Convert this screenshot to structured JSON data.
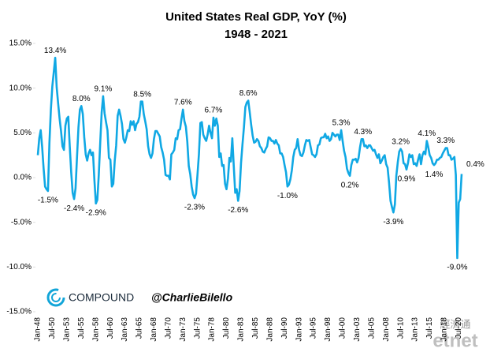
{
  "chart_data": {
    "type": "line",
    "title": "United States Real GDP, YoY (%)",
    "subtitle": "1948 - 2021",
    "branding": {
      "company": "COMPOUND",
      "handle": "@CharlieBilello",
      "watermark": "etnet",
      "watermark_cn": "經濟通"
    },
    "color": "#10a8e4",
    "ylim": [
      -15,
      15
    ],
    "yticks": [
      {
        "value": -15,
        "label": "-15.0%"
      },
      {
        "value": -10,
        "label": "-10.0%"
      },
      {
        "value": -5,
        "label": "-5.0%"
      },
      {
        "value": 0,
        "label": "0.0%"
      },
      {
        "value": 5,
        "label": "5.0%"
      },
      {
        "value": 10,
        "label": "10.0%"
      },
      {
        "value": 15,
        "label": "15.0%"
      }
    ],
    "categories": [
      "Jan-48",
      null,
      null,
      null,
      null,
      null,
      null,
      null,
      null,
      null,
      "Jul-50",
      null,
      null,
      null,
      null,
      null,
      null,
      null,
      null,
      null,
      "Jan-53",
      null,
      null,
      null,
      null,
      null,
      null,
      null,
      null,
      null,
      "Jul-55",
      null,
      null,
      null,
      null,
      null,
      null,
      null,
      null,
      null,
      "Jan-58",
      null,
      null,
      null,
      null,
      null,
      null,
      null,
      null,
      null,
      "Jul-60",
      null,
      null,
      null,
      null,
      null,
      null,
      null,
      null,
      null,
      "Jan-63",
      null,
      null,
      null,
      null,
      null,
      null,
      null,
      null,
      null,
      "Jul-65",
      null,
      null,
      null,
      null,
      null,
      null,
      null,
      null,
      null,
      "Jan-68",
      null,
      null,
      null,
      null,
      null,
      null,
      null,
      null,
      null,
      "Jul-70",
      null,
      null,
      null,
      null,
      null,
      null,
      null,
      null,
      null,
      "Jan-73",
      null,
      null,
      null,
      null,
      null,
      null,
      null,
      null,
      null,
      "Jul-75",
      null,
      null,
      null,
      null,
      null,
      null,
      null,
      null,
      null,
      "Jan-78",
      null,
      null,
      null,
      null,
      null,
      null,
      null,
      null,
      null,
      "Jul-80",
      null,
      null,
      null,
      null,
      null,
      null,
      null,
      null,
      null,
      "Jan-83",
      null,
      null,
      null,
      null,
      null,
      null,
      null,
      null,
      null,
      "Jul-85",
      null,
      null,
      null,
      null,
      null,
      null,
      null,
      null,
      null,
      "Jan-88",
      null,
      null,
      null,
      null,
      null,
      null,
      null,
      null,
      null,
      "Jul-90",
      null,
      null,
      null,
      null,
      null,
      null,
      null,
      null,
      null,
      "Jan-93",
      null,
      null,
      null,
      null,
      null,
      null,
      null,
      null,
      null,
      "Jul-95",
      null,
      null,
      null,
      null,
      null,
      null,
      null,
      null,
      null,
      "Jan-98",
      null,
      null,
      null,
      null,
      null,
      null,
      null,
      null,
      null,
      "Jul-00",
      null,
      null,
      null,
      null,
      null,
      null,
      null,
      null,
      null,
      "Jan-03",
      null,
      null,
      null,
      null,
      null,
      null,
      null,
      null,
      null,
      "Jul-05",
      null,
      null,
      null,
      null,
      null,
      null,
      null,
      null,
      null,
      "Jan-08",
      null,
      null,
      null,
      null,
      null,
      null,
      null,
      null,
      null,
      "Jul-10",
      null,
      null,
      null,
      null,
      null,
      null,
      null,
      null,
      null,
      "Jan-13",
      null,
      null,
      null,
      null,
      null,
      null,
      null,
      null,
      null,
      "Jul-15",
      null,
      null,
      null,
      null,
      null,
      null,
      null,
      null,
      null,
      "Jan-18",
      null,
      null,
      null,
      null,
      null,
      null,
      null,
      null,
      null,
      "Jul-20",
      null,
      null
    ],
    "values": [
      2.5,
      4.4,
      5.3,
      3.4,
      1.0,
      -1.0,
      -1.3,
      -1.5,
      3.9,
      7.6,
      10.2,
      11.8,
      13.4,
      10.1,
      8.3,
      6.6,
      5.2,
      3.5,
      3.1,
      5.8,
      6.6,
      6.8,
      3.5,
      0.6,
      -1.7,
      -2.4,
      -1.2,
      2.3,
      5.6,
      7.6,
      8.0,
      7.1,
      4.5,
      2.6,
      1.9,
      2.7,
      3.1,
      2.5,
      2.8,
      -0.3,
      -2.9,
      -2.5,
      0.3,
      3.9,
      7.3,
      9.1,
      7.2,
      6.2,
      5.3,
      2.2,
      2.0,
      -1.0,
      -0.7,
      1.9,
      3.6,
      6.9,
      7.6,
      6.9,
      6.0,
      4.3,
      3.9,
      4.5,
      5.3,
      5.2,
      6.3,
      5.9,
      6.3,
      5.3,
      6.0,
      6.2,
      6.8,
      8.5,
      8.5,
      7.1,
      6.3,
      5.4,
      3.5,
      2.6,
      2.2,
      2.7,
      4.3,
      5.2,
      5.2,
      4.9,
      4.6,
      3.4,
      2.8,
      2.0,
      0.3,
      0.2,
      0.2,
      -0.2,
      2.6,
      2.8,
      3.1,
      4.4,
      4.3,
      5.3,
      5.4,
      6.6,
      7.6,
      6.3,
      5.7,
      4.0,
      1.3,
      0.4,
      -1.0,
      -1.9,
      -2.3,
      -1.8,
      0.3,
      2.6,
      6.1,
      6.2,
      4.8,
      4.4,
      4.1,
      4.8,
      5.8,
      5.0,
      4.4,
      6.7,
      5.8,
      6.6,
      5.8,
      2.3,
      2.7,
      1.3,
      1.4,
      -0.7,
      -1.3,
      -0.1,
      2.2,
      1.8,
      4.4,
      1.3,
      -1.7,
      -1.3,
      -2.6,
      -1.5,
      1.6,
      3.7,
      5.6,
      7.9,
      8.4,
      8.6,
      7.3,
      5.9,
      4.7,
      3.9,
      4.0,
      4.3,
      4.1,
      3.5,
      3.3,
      2.9,
      2.8,
      3.2,
      3.5,
      4.5,
      4.4,
      4.1,
      4.1,
      3.8,
      4.2,
      3.8,
      3.6,
      2.7,
      2.7,
      2.3,
      1.4,
      0.6,
      -1.0,
      -0.8,
      -0.2,
      0.8,
      2.3,
      3.1,
      3.3,
      4.3,
      3.1,
      2.5,
      2.4,
      2.8,
      3.6,
      4.2,
      4.1,
      4.2,
      3.4,
      2.6,
      2.5,
      2.3,
      2.6,
      3.6,
      3.7,
      4.4,
      4.5,
      4.5,
      4.9,
      4.4,
      4.6,
      4.1,
      4.3,
      5.0,
      4.8,
      4.6,
      4.8,
      4.8,
      4.2,
      5.3,
      4.1,
      3.0,
      2.3,
      1.0,
      0.5,
      0.2,
      1.4,
      2.0,
      2.0,
      2.1,
      1.7,
      2.2,
      3.4,
      4.3,
      4.3,
      3.5,
      3.6,
      3.3,
      3.6,
      3.6,
      3.3,
      3.0,
      3.1,
      2.6,
      2.2,
      2.6,
      1.6,
      1.9,
      2.3,
      2.5,
      1.5,
      1.1,
      -0.6,
      -2.6,
      -3.3,
      -3.9,
      -3.0,
      0.2,
      1.7,
      2.9,
      3.2,
      2.9,
      1.6,
      1.5,
      0.9,
      1.6,
      2.6,
      2.3,
      2.5,
      1.5,
      1.6,
      1.3,
      2.0,
      2.6,
      1.5,
      2.5,
      2.9,
      2.6,
      4.1,
      3.4,
      2.5,
      2.2,
      1.6,
      1.4,
      1.6,
      2.0,
      2.0,
      2.2,
      2.3,
      2.7,
      3.0,
      3.3,
      3.3,
      2.5,
      2.5,
      2.0,
      2.1,
      2.3,
      0.3,
      -9.0,
      -2.8,
      -2.4,
      0.4
    ],
    "value_labels": [
      null,
      null,
      null,
      null,
      null,
      null,
      null,
      "-1.5%",
      null,
      null,
      null,
      null,
      "13.4%",
      null,
      null,
      null,
      null,
      null,
      null,
      null,
      null,
      null,
      null,
      null,
      null,
      "-2.4%",
      null,
      null,
      null,
      null,
      "8.0%",
      null,
      null,
      null,
      null,
      null,
      null,
      null,
      null,
      null,
      "-2.9%",
      null,
      null,
      null,
      null,
      "9.1%",
      null,
      null,
      null,
      null,
      null,
      null,
      null,
      null,
      null,
      null,
      null,
      null,
      null,
      null,
      null,
      null,
      null,
      null,
      null,
      null,
      null,
      null,
      null,
      null,
      null,
      null,
      "8.5%",
      null,
      null,
      null,
      null,
      null,
      null,
      null,
      null,
      null,
      null,
      null,
      null,
      null,
      null,
      null,
      null,
      null,
      null,
      null,
      null,
      null,
      null,
      null,
      null,
      null,
      null,
      null,
      "7.6%",
      null,
      null,
      null,
      null,
      null,
      null,
      null,
      "-2.3%",
      null,
      null,
      null,
      null,
      null,
      null,
      null,
      null,
      null,
      null,
      null,
      null,
      "6.7%",
      null,
      null,
      null,
      null,
      null,
      null,
      null,
      null,
      null,
      null,
      null,
      null,
      null,
      null,
      null,
      null,
      "-2.6%",
      null,
      null,
      null,
      null,
      null,
      null,
      "8.6%",
      null,
      null,
      null,
      null,
      null,
      null,
      null,
      null,
      null,
      null,
      null,
      null,
      null,
      null,
      null,
      null,
      null,
      null,
      null,
      null,
      null,
      null,
      null,
      null,
      null,
      null,
      "-1.0%",
      null,
      null,
      null,
      null,
      null,
      null,
      null,
      null,
      null,
      null,
      null,
      null,
      null,
      null,
      null,
      null,
      null,
      null,
      null,
      null,
      null,
      null,
      null,
      null,
      null,
      null,
      null,
      null,
      null,
      null,
      null,
      null,
      null,
      null,
      null,
      null,
      "5.3%",
      null,
      null,
      null,
      null,
      null,
      "0.2%",
      null,
      null,
      null,
      null,
      null,
      null,
      null,
      null,
      "4.3%",
      null,
      null,
      null,
      null,
      null,
      null,
      null,
      null,
      null,
      null,
      null,
      null,
      null,
      null,
      null,
      null,
      null,
      null,
      null,
      null,
      "-3.9%",
      null,
      null,
      null,
      null,
      "3.2%",
      null,
      null,
      null,
      "0.9%",
      null,
      null,
      null,
      null,
      null,
      null,
      null,
      null,
      null,
      null,
      null,
      null,
      null,
      "4.1%",
      null,
      null,
      null,
      null,
      "1.4%",
      null,
      null,
      null,
      null,
      null,
      null,
      null,
      "3.3%",
      null,
      null,
      null,
      null,
      null,
      null,
      null,
      "-9.0%",
      null,
      null,
      "0.4%"
    ]
  }
}
